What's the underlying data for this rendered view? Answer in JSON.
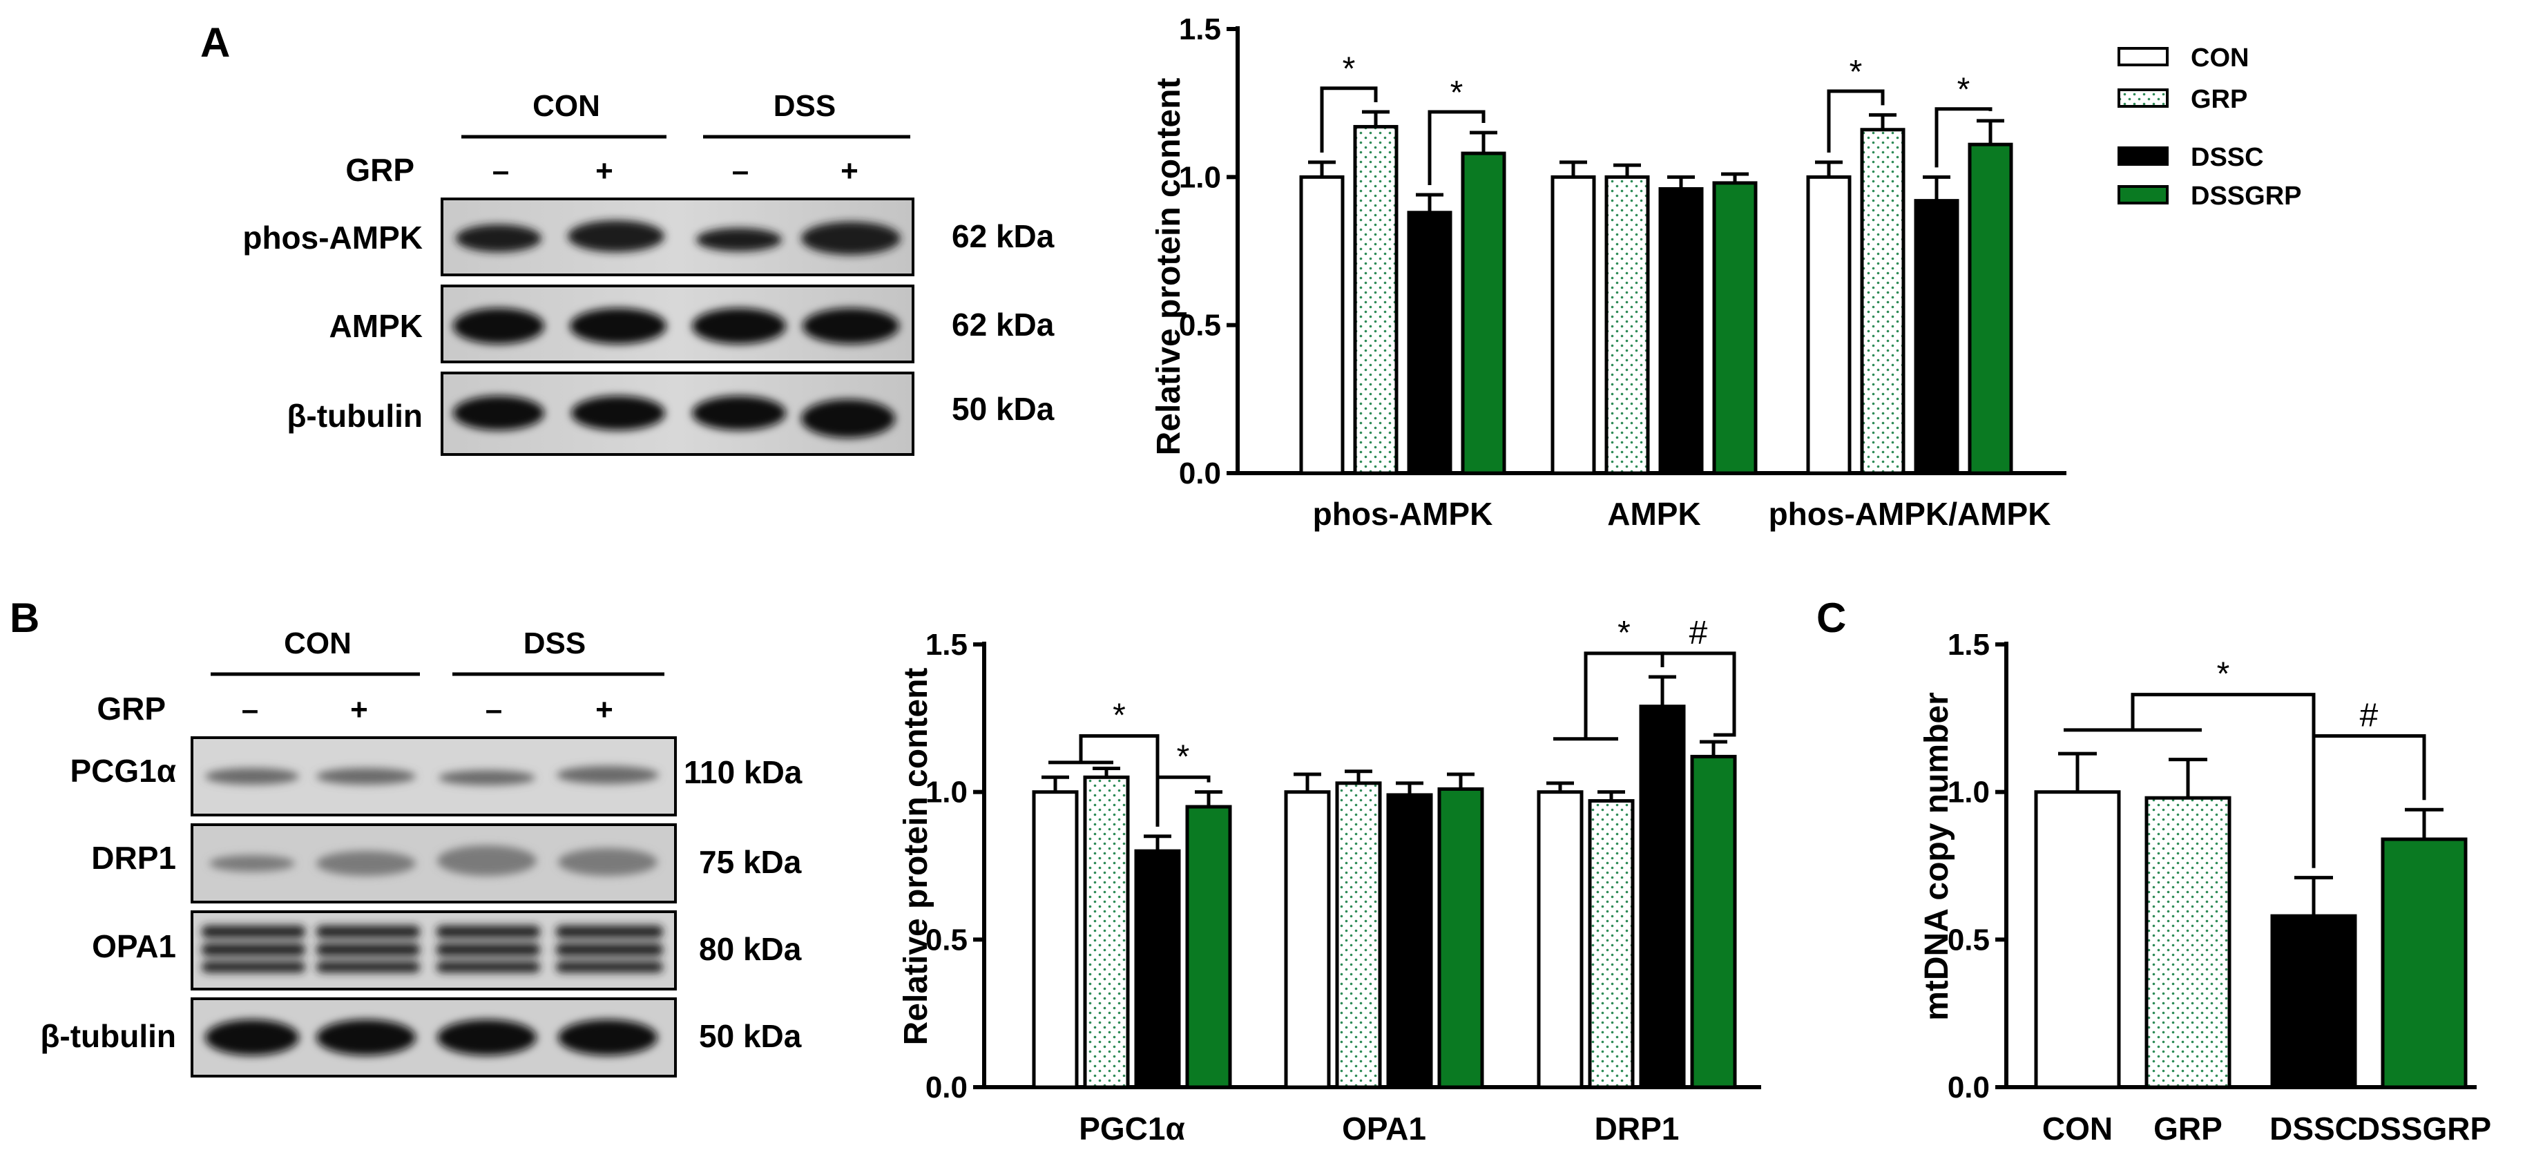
{
  "colors": {
    "CON": "#ffffff",
    "GRP": "#ffffff",
    "GRP_dots": "#2e8b57",
    "DSSC": "#000000",
    "DSSGRP": "#0a7a22",
    "stroke": "#000000"
  },
  "legend": {
    "items": [
      {
        "key": "CON",
        "label": "CON"
      },
      {
        "key": "GRP",
        "label": "GRP"
      },
      {
        "key": "DSSC",
        "label": "DSSC"
      },
      {
        "key": "DSSGRP",
        "label": "DSSGRP"
      }
    ]
  },
  "panels": {
    "A": {
      "letter": "A",
      "blot": {
        "groups": [
          "CON",
          "DSS"
        ],
        "treatment_label": "GRP",
        "treatment_signs": [
          "–",
          "+",
          "–",
          "+"
        ],
        "rows": [
          {
            "protein": "phos-AMPK",
            "size": "62 kDa"
          },
          {
            "protein": "AMPK",
            "size": "62 kDa"
          },
          {
            "protein": "β-tubulin",
            "size": "50 kDa"
          }
        ]
      }
    },
    "B": {
      "letter": "B",
      "blot": {
        "groups": [
          "CON",
          "DSS"
        ],
        "treatment_label": "GRP",
        "treatment_signs": [
          "–",
          "+",
          "–",
          "+"
        ],
        "rows": [
          {
            "protein": "PCG1α",
            "size": "110 kDa"
          },
          {
            "protein": "DRP1",
            "size": "75 kDa"
          },
          {
            "protein": "OPA1",
            "size": "80 kDa"
          },
          {
            "protein": "β-tubulin",
            "size": "50 kDa"
          }
        ]
      }
    },
    "C": {
      "letter": "C"
    }
  },
  "chart_data": [
    {
      "id": "A",
      "type": "bar",
      "ylabel": "Relative protein content",
      "ylim": [
        0,
        1.5
      ],
      "yticks": [
        "0.0",
        "0.5",
        "1.0",
        "1.5"
      ],
      "categories": [
        "phos-AMPK",
        "AMPK",
        "phos-AMPK/AMPK"
      ],
      "series": [
        {
          "name": "CON",
          "values": [
            1.0,
            1.0,
            1.0
          ],
          "errors": [
            0.05,
            0.05,
            0.05
          ]
        },
        {
          "name": "GRP",
          "values": [
            1.17,
            1.0,
            1.16
          ],
          "errors": [
            0.05,
            0.04,
            0.05
          ]
        },
        {
          "name": "DSSC",
          "values": [
            0.88,
            0.96,
            0.92
          ],
          "errors": [
            0.06,
            0.04,
            0.08
          ]
        },
        {
          "name": "DSSGRP",
          "values": [
            1.08,
            0.98,
            1.11
          ],
          "errors": [
            0.07,
            0.03,
            0.08
          ]
        }
      ],
      "annotations": [
        {
          "category": 0,
          "from": "CON",
          "to": "GRP",
          "label": "*"
        },
        {
          "category": 0,
          "from": "DSSC",
          "to": "DSSGRP",
          "label": "*"
        },
        {
          "category": 2,
          "from": "CON",
          "to": "GRP",
          "label": "*"
        },
        {
          "category": 2,
          "from": "DSSC",
          "to": "DSSGRP",
          "label": "*"
        }
      ]
    },
    {
      "id": "B",
      "type": "bar",
      "ylabel": "Relative protein content",
      "ylim": [
        0,
        1.5
      ],
      "yticks": [
        "0.0",
        "0.5",
        "1.0",
        "1.5"
      ],
      "categories": [
        "PGC1α",
        "OPA1",
        "DRP1"
      ],
      "series": [
        {
          "name": "CON",
          "values": [
            1.0,
            1.0,
            1.0
          ],
          "errors": [
            0.05,
            0.06,
            0.03
          ]
        },
        {
          "name": "GRP",
          "values": [
            1.05,
            1.03,
            0.97
          ],
          "errors": [
            0.03,
            0.04,
            0.03
          ]
        },
        {
          "name": "DSSC",
          "values": [
            0.8,
            0.99,
            1.29
          ],
          "errors": [
            0.05,
            0.04,
            0.1
          ]
        },
        {
          "name": "DSSGRP",
          "values": [
            0.95,
            1.01,
            1.12
          ],
          "errors": [
            0.05,
            0.05,
            0.05
          ]
        }
      ],
      "annotations": [
        {
          "category": 0,
          "label": "*"
        },
        {
          "category": 0,
          "label": "*"
        },
        {
          "category": 2,
          "label": "*"
        },
        {
          "category": 2,
          "label": "#"
        }
      ]
    },
    {
      "id": "C",
      "type": "bar",
      "ylabel": "mtDNA copy number",
      "ylim": [
        0,
        1.5
      ],
      "yticks": [
        "0.0",
        "0.5",
        "1.0",
        "1.5"
      ],
      "categories": [
        "CON",
        "GRP",
        "DSSC",
        "DSSGRP"
      ],
      "values": [
        1.0,
        0.98,
        0.58,
        0.84
      ],
      "errors": [
        0.13,
        0.13,
        0.13,
        0.1
      ],
      "annotations": [
        {
          "label": "*"
        },
        {
          "label": "#"
        }
      ]
    }
  ]
}
